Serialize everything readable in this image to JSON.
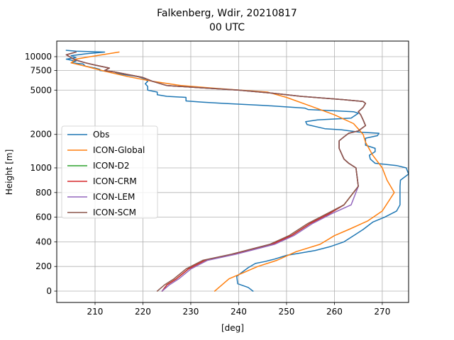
{
  "chart_data": {
    "type": "line",
    "title_line1": "Falkenberg, Wdir, 20210817",
    "title_line2": "00 UTC",
    "xlabel": "[deg]",
    "ylabel": "Height [m]",
    "xlim": [
      202,
      275.5
    ],
    "y_scale": "height axis: linear 0–1000 m, logarithmic above 1000 m",
    "y_tick_labels": [
      "0",
      "200",
      "400",
      "600",
      "800",
      "1000",
      "2000",
      "5000",
      "7500",
      "10000"
    ],
    "y_tick_values": [
      0,
      200,
      400,
      600,
      800,
      1000,
      2000,
      5000,
      7500,
      10000
    ],
    "x_ticks": [
      210,
      220,
      230,
      240,
      250,
      260,
      270
    ],
    "grid": true,
    "legend_position": "center-left",
    "series": [
      {
        "name": "Obs",
        "color": "#1f77b4",
        "points": [
          [
            243,
            0
          ],
          [
            242,
            30
          ],
          [
            239.8,
            60
          ],
          [
            239.6,
            120
          ],
          [
            240.6,
            150
          ],
          [
            242,
            190
          ],
          [
            243.5,
            225
          ],
          [
            245.5,
            240
          ],
          [
            247.5,
            260
          ],
          [
            250,
            290
          ],
          [
            253,
            310
          ],
          [
            256,
            330
          ],
          [
            259,
            360
          ],
          [
            262,
            400
          ],
          [
            264,
            450
          ],
          [
            266,
            500
          ],
          [
            268,
            560
          ],
          [
            270.5,
            600
          ],
          [
            273,
            650
          ],
          [
            273.7,
            700
          ],
          [
            273.7,
            750
          ],
          [
            273.7,
            800
          ],
          [
            273.7,
            850
          ],
          [
            273.8,
            900
          ],
          [
            275.5,
            950
          ],
          [
            275,
            1000
          ],
          [
            273,
            1050
          ],
          [
            268.5,
            1100
          ],
          [
            267.5,
            1200
          ],
          [
            267.3,
            1300
          ],
          [
            268.5,
            1400
          ],
          [
            268.5,
            1500
          ],
          [
            266.5,
            1600
          ],
          [
            266.5,
            1700
          ],
          [
            266.5,
            1850
          ],
          [
            269,
            1950
          ],
          [
            269.3,
            2050
          ],
          [
            265,
            2100
          ],
          [
            261.5,
            2200
          ],
          [
            258,
            2250
          ],
          [
            254.3,
            2450
          ],
          [
            254,
            2600
          ],
          [
            256.5,
            2700
          ],
          [
            263.5,
            2800
          ],
          [
            264.5,
            3000
          ],
          [
            265,
            3100
          ],
          [
            264,
            3200
          ],
          [
            254.5,
            3350
          ],
          [
            253.8,
            3450
          ],
          [
            245,
            3650
          ],
          [
            237,
            3800
          ],
          [
            232.5,
            3900
          ],
          [
            229,
            4000
          ],
          [
            229,
            4300
          ],
          [
            225,
            4400
          ],
          [
            223,
            4550
          ],
          [
            223,
            4800
          ],
          [
            221,
            5000
          ],
          [
            221,
            5400
          ],
          [
            220.5,
            5700
          ],
          [
            221,
            6000
          ],
          [
            220.5,
            6300
          ],
          [
            219,
            6600
          ],
          [
            215,
            7000
          ],
          [
            214,
            7300
          ],
          [
            211,
            7500
          ],
          [
            211,
            7700
          ],
          [
            210,
            7900
          ],
          [
            208,
            8200
          ],
          [
            207.5,
            8600
          ],
          [
            205,
            8800
          ],
          [
            206,
            9100
          ],
          [
            204,
            9500
          ],
          [
            206,
            9800
          ],
          [
            205,
            10200
          ],
          [
            208,
            10600
          ],
          [
            212,
            11000
          ],
          [
            206,
            11200
          ],
          [
            204,
            11400
          ]
        ]
      },
      {
        "name": "ICON-Global",
        "color": "#ff7f0e",
        "points": [
          [
            235,
            0
          ],
          [
            238,
            100
          ],
          [
            241,
            150
          ],
          [
            244,
            200
          ],
          [
            248,
            250
          ],
          [
            252,
            320
          ],
          [
            257,
            380
          ],
          [
            260,
            450
          ],
          [
            263,
            500
          ],
          [
            267,
            570
          ],
          [
            270,
            650
          ],
          [
            272.5,
            800
          ],
          [
            271,
            900
          ],
          [
            270,
            1000
          ],
          [
            268,
            1300
          ],
          [
            266.5,
            1700
          ],
          [
            266,
            2000
          ],
          [
            264,
            2500
          ],
          [
            260,
            3000
          ],
          [
            255,
            3600
          ],
          [
            250,
            4300
          ],
          [
            246,
            4800
          ],
          [
            235,
            5200
          ],
          [
            228,
            5500
          ],
          [
            222,
            6000
          ],
          [
            217,
            6600
          ],
          [
            212,
            7400
          ],
          [
            208,
            8200
          ],
          [
            205,
            8800
          ],
          [
            206,
            9500
          ],
          [
            209,
            10000
          ],
          [
            212,
            10500
          ],
          [
            215,
            11000
          ]
        ]
      },
      {
        "name": "ICON-D2",
        "color": "#2ca02c",
        "points": [
          [
            224,
            0
          ],
          [
            225,
            50
          ],
          [
            227,
            100
          ],
          [
            229.5,
            180
          ],
          [
            233,
            250
          ],
          [
            239,
            300
          ],
          [
            247,
            380
          ],
          [
            251,
            450
          ],
          [
            255,
            550
          ],
          [
            259,
            630
          ],
          [
            262,
            700
          ],
          [
            265,
            850
          ],
          [
            264.5,
            1000
          ],
          [
            263,
            1100
          ],
          [
            262,
            1200
          ],
          [
            261,
            1500
          ],
          [
            261,
            1750
          ],
          [
            262,
            1900
          ],
          [
            263,
            2050
          ],
          [
            265,
            2150
          ],
          [
            266.5,
            2400
          ],
          [
            266,
            2700
          ],
          [
            265.5,
            3000
          ],
          [
            265,
            3200
          ],
          [
            266,
            3500
          ],
          [
            266.5,
            3800
          ],
          [
            266,
            3950
          ],
          [
            262,
            4100
          ],
          [
            253,
            4400
          ],
          [
            247,
            4700
          ],
          [
            240,
            5000
          ],
          [
            232,
            5250
          ],
          [
            225,
            5500
          ],
          [
            222,
            6000
          ],
          [
            220,
            6500
          ],
          [
            214,
            7300
          ],
          [
            212,
            7500
          ],
          [
            213,
            7900
          ],
          [
            210,
            8400
          ],
          [
            208,
            8800
          ],
          [
            206,
            9300
          ],
          [
            205,
            9800
          ],
          [
            204,
            10400
          ],
          [
            206,
            11000
          ]
        ]
      },
      {
        "name": "ICON-CRM",
        "color": "#d62728",
        "points": [
          [
            224,
            0
          ],
          [
            225,
            50
          ],
          [
            227,
            100
          ],
          [
            229.5,
            180
          ],
          [
            233,
            250
          ],
          [
            239,
            300
          ],
          [
            247,
            380
          ],
          [
            251,
            450
          ],
          [
            255,
            550
          ],
          [
            259,
            630
          ],
          [
            262,
            700
          ],
          [
            265,
            850
          ],
          [
            264.5,
            1000
          ],
          [
            263,
            1100
          ],
          [
            262,
            1200
          ],
          [
            261,
            1500
          ],
          [
            261,
            1750
          ],
          [
            262,
            1900
          ],
          [
            263,
            2050
          ],
          [
            265,
            2150
          ],
          [
            266.5,
            2400
          ],
          [
            266,
            2700
          ],
          [
            265.5,
            3000
          ],
          [
            265,
            3200
          ],
          [
            266,
            3500
          ],
          [
            266.5,
            3800
          ],
          [
            266,
            3950
          ],
          [
            262,
            4100
          ],
          [
            253,
            4400
          ],
          [
            247,
            4700
          ],
          [
            240,
            5000
          ],
          [
            232,
            5250
          ],
          [
            225,
            5500
          ],
          [
            222,
            6000
          ],
          [
            220,
            6500
          ],
          [
            214,
            7300
          ],
          [
            212,
            7500
          ],
          [
            213,
            7900
          ],
          [
            210,
            8400
          ],
          [
            208,
            8800
          ],
          [
            206,
            9300
          ],
          [
            205,
            9800
          ],
          [
            204,
            10400
          ],
          [
            206,
            11000
          ]
        ]
      },
      {
        "name": "ICON-LEM",
        "color": "#9467bd",
        "points": [
          [
            224,
            0
          ],
          [
            225.5,
            50
          ],
          [
            227.5,
            100
          ],
          [
            230,
            180
          ],
          [
            233.5,
            250
          ],
          [
            239.5,
            300
          ],
          [
            247.5,
            380
          ],
          [
            251.5,
            450
          ],
          [
            255.5,
            550
          ],
          [
            259.5,
            630
          ],
          [
            263.5,
            700
          ],
          [
            265,
            850
          ],
          [
            264.5,
            1000
          ],
          [
            263,
            1100
          ],
          [
            262,
            1200
          ],
          [
            261,
            1500
          ],
          [
            261,
            1750
          ],
          [
            262,
            1900
          ],
          [
            263,
            2050
          ],
          [
            265,
            2150
          ],
          [
            266.5,
            2400
          ],
          [
            266,
            2700
          ],
          [
            265.5,
            3000
          ],
          [
            265,
            3200
          ],
          [
            266,
            3500
          ],
          [
            266.5,
            3800
          ],
          [
            266,
            3950
          ],
          [
            262,
            4100
          ],
          [
            253,
            4400
          ],
          [
            247,
            4700
          ],
          [
            240,
            5000
          ],
          [
            232,
            5250
          ],
          [
            225,
            5500
          ],
          [
            222,
            6000
          ],
          [
            220,
            6500
          ],
          [
            214,
            7300
          ],
          [
            212,
            7500
          ],
          [
            213,
            7900
          ],
          [
            210,
            8400
          ],
          [
            208,
            8800
          ],
          [
            206,
            9300
          ],
          [
            205,
            9800
          ],
          [
            204,
            10400
          ],
          [
            206,
            11000
          ]
        ]
      },
      {
        "name": "ICON-SCM",
        "color": "#8c564b",
        "points": [
          [
            223,
            0
          ],
          [
            224.5,
            50
          ],
          [
            226.5,
            100
          ],
          [
            229,
            180
          ],
          [
            232.5,
            250
          ],
          [
            238.5,
            300
          ],
          [
            246.5,
            380
          ],
          [
            250.5,
            450
          ],
          [
            254.5,
            550
          ],
          [
            258.5,
            630
          ],
          [
            262,
            700
          ],
          [
            265,
            850
          ],
          [
            264.5,
            1000
          ],
          [
            263,
            1100
          ],
          [
            262,
            1200
          ],
          [
            261,
            1500
          ],
          [
            261,
            1750
          ],
          [
            262,
            1900
          ],
          [
            263,
            2050
          ],
          [
            265,
            2150
          ],
          [
            266.5,
            2400
          ],
          [
            266,
            2700
          ],
          [
            265.5,
            3000
          ],
          [
            265,
            3200
          ],
          [
            266,
            3500
          ],
          [
            266.5,
            3800
          ],
          [
            266,
            3950
          ],
          [
            262,
            4100
          ],
          [
            253,
            4400
          ],
          [
            247,
            4700
          ],
          [
            240,
            5000
          ],
          [
            232,
            5250
          ],
          [
            225,
            5500
          ],
          [
            222,
            6000
          ],
          [
            220,
            6500
          ],
          [
            214,
            7300
          ],
          [
            212,
            7500
          ],
          [
            213,
            7900
          ],
          [
            210,
            8400
          ],
          [
            208,
            8800
          ],
          [
            206,
            9300
          ],
          [
            205,
            9800
          ],
          [
            204,
            10400
          ],
          [
            206,
            11000
          ]
        ]
      }
    ]
  }
}
